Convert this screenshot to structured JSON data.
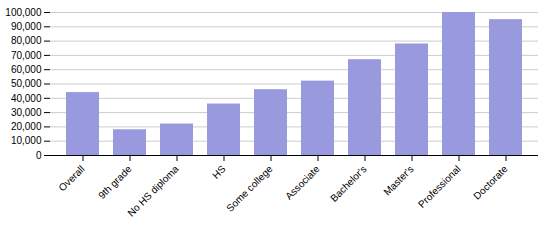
{
  "chart_data": {
    "type": "bar",
    "categories": [
      "Overall",
      "9th grade",
      "No HS diploma",
      "HS",
      "Some college",
      "Associate",
      "Bachelor's",
      "Master's",
      "Professional",
      "Doctorate"
    ],
    "values": [
      44000,
      18000,
      22000,
      36000,
      46000,
      52000,
      67000,
      78000,
      100000,
      95000
    ],
    "color": "#9999dd",
    "ylim": [
      0,
      100000
    ],
    "yticks": [
      0,
      {
        "value": 10000,
        "label": "10,000"
      },
      {
        "value": 20000,
        "label": "20,000"
      },
      {
        "value": 30000,
        "label": "30,000"
      },
      {
        "value": 40000,
        "label": "40,000"
      },
      {
        "value": 50000,
        "label": "50,000"
      },
      {
        "value": 60000,
        "label": "60,000"
      },
      {
        "value": 70000,
        "label": "70,000"
      },
      {
        "value": 80000,
        "label": "80,000"
      },
      {
        "value": 90000,
        "label": "90,000"
      },
      {
        "value": 100000,
        "label": "100,000"
      }
    ],
    "grid": true
  }
}
